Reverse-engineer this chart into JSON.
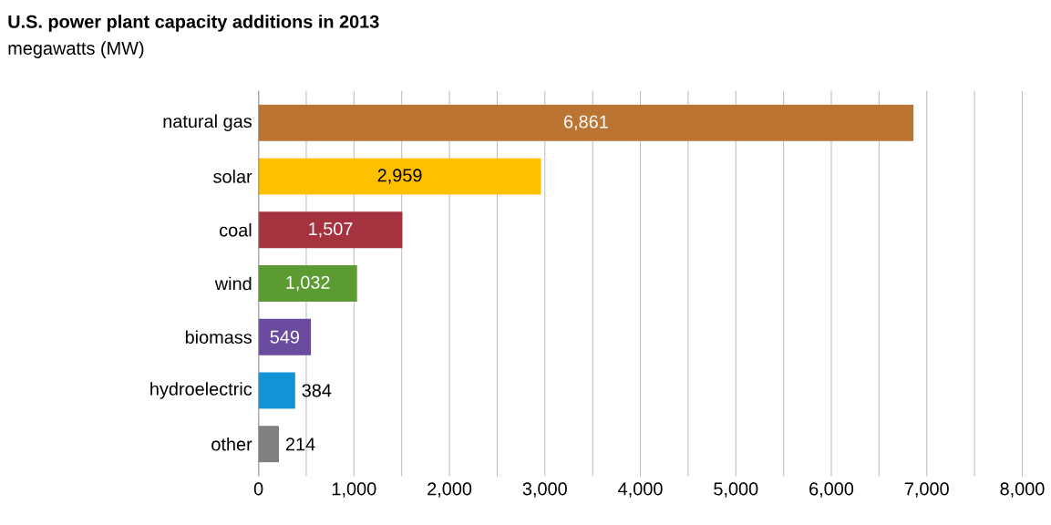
{
  "chart_data": {
    "type": "bar",
    "orientation": "horizontal",
    "title": "U.S. power plant capacity additions in 2013",
    "subtitle": "megawatts (MW)",
    "categories": [
      "natural gas",
      "solar",
      "coal",
      "wind",
      "biomass",
      "hydroelectric",
      "other"
    ],
    "values": [
      6861,
      2959,
      1507,
      1032,
      549,
      384,
      214
    ],
    "colors": [
      "#bb7431",
      "#ffc000",
      "#a4333f",
      "#5c9a32",
      "#6b4b9f",
      "#1293d8",
      "#808080"
    ],
    "data_labels": true,
    "value_labels": [
      "6,861",
      "2,959",
      "1,507",
      "1,032",
      "549",
      "384",
      "214"
    ],
    "xlim": [
      0,
      8000
    ],
    "xticks": [
      0,
      {
        "value": 500,
        "label": null
      },
      {
        "value": 1000,
        "label": "1,000"
      },
      {
        "value": 1500,
        "label": null
      },
      {
        "value": 2000,
        "label": "2,000"
      },
      {
        "value": 2500,
        "label": null
      },
      {
        "value": 3000,
        "label": "3,000"
      },
      {
        "value": 3500,
        "label": null
      },
      {
        "value": 4000,
        "label": "4,000"
      },
      {
        "value": 4500,
        "label": null
      },
      {
        "value": 5000,
        "label": "5,000"
      },
      {
        "value": 5500,
        "label": null
      },
      {
        "value": 6000,
        "label": "6,000"
      },
      {
        "value": 6500,
        "label": null
      },
      {
        "value": 7000,
        "label": "7,000"
      },
      {
        "value": 7500,
        "label": null
      },
      {
        "value": 8000,
        "label": "8,000"
      }
    ],
    "grid": "x"
  }
}
